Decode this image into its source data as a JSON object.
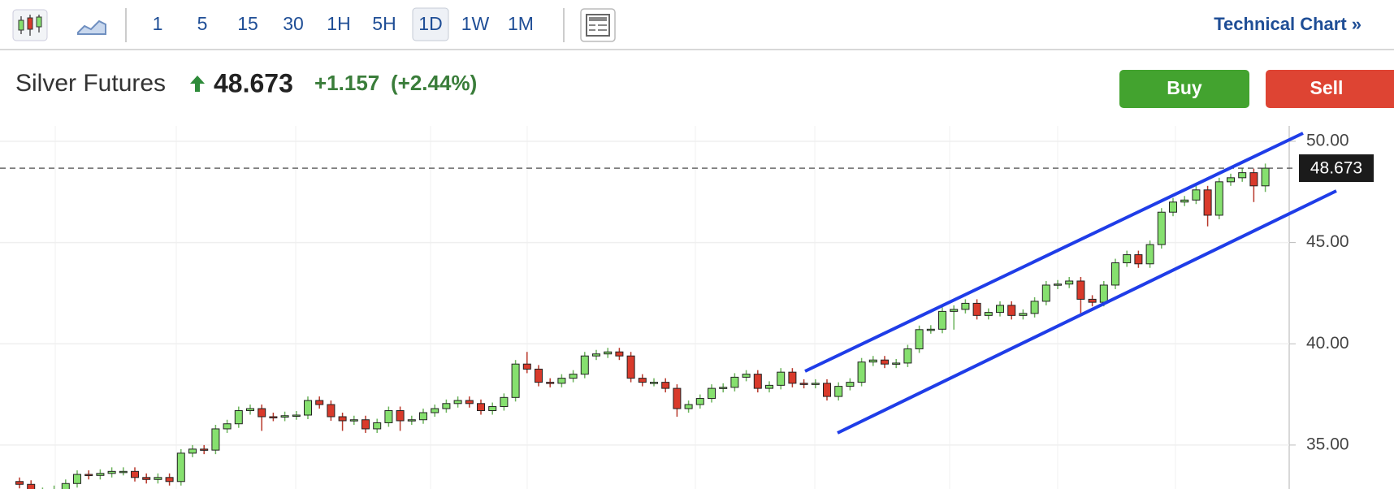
{
  "toolbar": {
    "intervals": [
      "1",
      "5",
      "15",
      "30",
      "1H",
      "5H",
      "1D",
      "1W",
      "1M"
    ],
    "selected": 6,
    "link": "Technical Chart »"
  },
  "header": {
    "name": "Silver Futures",
    "price": "48.673",
    "change": "+1.157",
    "change_pct": "(+2.44%)"
  },
  "buttons": {
    "buy": "Buy",
    "sell": "Sell"
  },
  "chart_data": {
    "type": "candlestick",
    "up_color": "#86e06f",
    "down_color": "#d93a2b",
    "ylim": [
      32.83,
      50.6
    ],
    "yticks": [
      {
        "value": 35,
        "label": "35.00"
      },
      {
        "value": 40,
        "label": "40.00"
      },
      {
        "value": 45,
        "label": "45.00"
      },
      {
        "value": 50,
        "label": "50.00"
      }
    ],
    "grid": true,
    "last_price": 48.673,
    "open": [
      33.2,
      33.06,
      32.7,
      32.7,
      32.8,
      33.1,
      33.55,
      33.5,
      33.6,
      33.7,
      33.7,
      33.4,
      33.3,
      33.4,
      33.2,
      34.6,
      34.8,
      34.75,
      35.8,
      36.05,
      36.7,
      36.8,
      36.4,
      36.38,
      36.45,
      36.48,
      37.2,
      37.0,
      36.4,
      36.2,
      36.25,
      35.8,
      36.1,
      36.7,
      36.2,
      36.25,
      36.6,
      36.8,
      37.05,
      37.2,
      37.05,
      36.7,
      36.9,
      37.35,
      39.0,
      38.75,
      38.1,
      38.05,
      38.3,
      38.5,
      39.4,
      39.5,
      39.6,
      39.4,
      38.3,
      38.1,
      38.1,
      37.8,
      36.8,
      37.0,
      37.3,
      37.8,
      37.85,
      38.35,
      38.5,
      37.8,
      37.95,
      38.6,
      38.05,
      38.0,
      38.05,
      37.4,
      37.9,
      38.1,
      39.1,
      39.2,
      39.0,
      39.05,
      39.75,
      40.7,
      40.72,
      41.6,
      41.7,
      42.0,
      41.4,
      41.55,
      41.9,
      41.4,
      41.5,
      42.1,
      42.9,
      42.95,
      43.1,
      42.2,
      42.05,
      42.9,
      44.0,
      44.4,
      43.95,
      44.9,
      46.5,
      47.0,
      47.1,
      47.6,
      46.35,
      48.0,
      48.2,
      48.45,
      47.8
    ],
    "high": [
      33.4,
      33.26,
      32.9,
      33.0,
      33.3,
      33.75,
      33.75,
      33.8,
      33.9,
      33.9,
      33.9,
      33.6,
      33.6,
      33.6,
      34.8,
      35.0,
      35.0,
      36.0,
      36.25,
      36.9,
      37.0,
      37.0,
      36.6,
      36.65,
      36.68,
      37.4,
      37.4,
      37.2,
      36.6,
      36.45,
      36.45,
      36.3,
      36.9,
      36.9,
      36.45,
      36.8,
      37.0,
      37.25,
      37.4,
      37.4,
      37.25,
      37.1,
      37.55,
      39.2,
      39.6,
      38.95,
      38.3,
      38.5,
      38.7,
      39.6,
      39.7,
      39.8,
      39.8,
      39.6,
      38.5,
      38.3,
      38.3,
      38.0,
      37.2,
      37.5,
      38.0,
      38.05,
      38.55,
      38.7,
      38.7,
      38.15,
      38.8,
      38.8,
      38.25,
      38.25,
      38.25,
      38.1,
      38.3,
      39.3,
      39.4,
      39.4,
      39.25,
      39.95,
      40.9,
      40.92,
      41.8,
      41.9,
      42.2,
      42.2,
      41.75,
      42.1,
      42.1,
      41.7,
      42.3,
      43.1,
      43.15,
      43.3,
      43.3,
      42.4,
      43.1,
      44.2,
      44.6,
      44.6,
      45.1,
      46.7,
      47.2,
      47.3,
      47.8,
      47.8,
      48.2,
      48.4,
      48.65,
      48.65,
      48.9
    ],
    "low": [
      32.86,
      32.5,
      32.5,
      32.5,
      32.6,
      32.9,
      33.3,
      33.3,
      33.4,
      33.5,
      33.2,
      33.1,
      33.1,
      33.0,
      33.0,
      34.4,
      34.55,
      34.55,
      35.6,
      35.85,
      36.5,
      35.7,
      36.18,
      36.18,
      36.25,
      36.28,
      36.8,
      36.2,
      35.7,
      36.0,
      35.6,
      35.6,
      35.9,
      35.7,
      36.0,
      36.05,
      36.4,
      36.6,
      36.85,
      36.85,
      36.5,
      36.5,
      36.7,
      37.15,
      38.55,
      37.9,
      37.85,
      37.85,
      38.1,
      38.3,
      39.2,
      39.3,
      39.2,
      38.1,
      37.9,
      37.9,
      37.6,
      36.4,
      36.6,
      36.8,
      37.1,
      37.6,
      37.65,
      38.15,
      37.6,
      37.6,
      37.75,
      37.85,
      37.8,
      37.8,
      37.2,
      37.2,
      37.7,
      37.9,
      38.9,
      38.8,
      38.8,
      38.85,
      39.55,
      40.5,
      40.52,
      40.7,
      41.5,
      41.2,
      41.2,
      41.35,
      41.2,
      41.2,
      41.3,
      41.9,
      42.7,
      42.75,
      41.5,
      41.85,
      41.85,
      42.7,
      43.8,
      43.75,
      43.75,
      44.7,
      46.3,
      46.8,
      46.9,
      45.8,
      46.15,
      47.8,
      48.0,
      47.0,
      47.5
    ],
    "close": [
      33.06,
      32.7,
      32.7,
      32.8,
      33.1,
      33.55,
      33.5,
      33.6,
      33.7,
      33.7,
      33.4,
      33.3,
      33.4,
      33.2,
      34.6,
      34.8,
      34.75,
      35.8,
      36.05,
      36.7,
      36.8,
      36.4,
      36.38,
      36.45,
      36.48,
      37.2,
      37.0,
      36.4,
      36.2,
      36.25,
      35.8,
      36.1,
      36.7,
      36.2,
      36.25,
      36.6,
      36.8,
      37.05,
      37.2,
      37.05,
      36.7,
      36.9,
      37.35,
      39.0,
      38.75,
      38.1,
      38.05,
      38.3,
      38.5,
      39.4,
      39.5,
      39.6,
      39.4,
      38.3,
      38.1,
      38.1,
      37.8,
      36.8,
      37.0,
      37.3,
      37.8,
      37.85,
      38.35,
      38.5,
      37.8,
      37.95,
      38.6,
      38.05,
      38.0,
      38.05,
      37.4,
      37.9,
      38.1,
      39.1,
      39.2,
      39.0,
      39.05,
      39.75,
      40.7,
      40.72,
      41.6,
      41.7,
      42.0,
      41.4,
      41.55,
      41.9,
      41.4,
      41.5,
      42.1,
      42.9,
      42.95,
      43.1,
      42.2,
      42.05,
      42.9,
      44.0,
      44.4,
      43.95,
      44.9,
      46.5,
      47.0,
      47.1,
      47.6,
      46.35,
      48.0,
      48.2,
      48.45,
      47.8,
      48.673
    ]
  }
}
